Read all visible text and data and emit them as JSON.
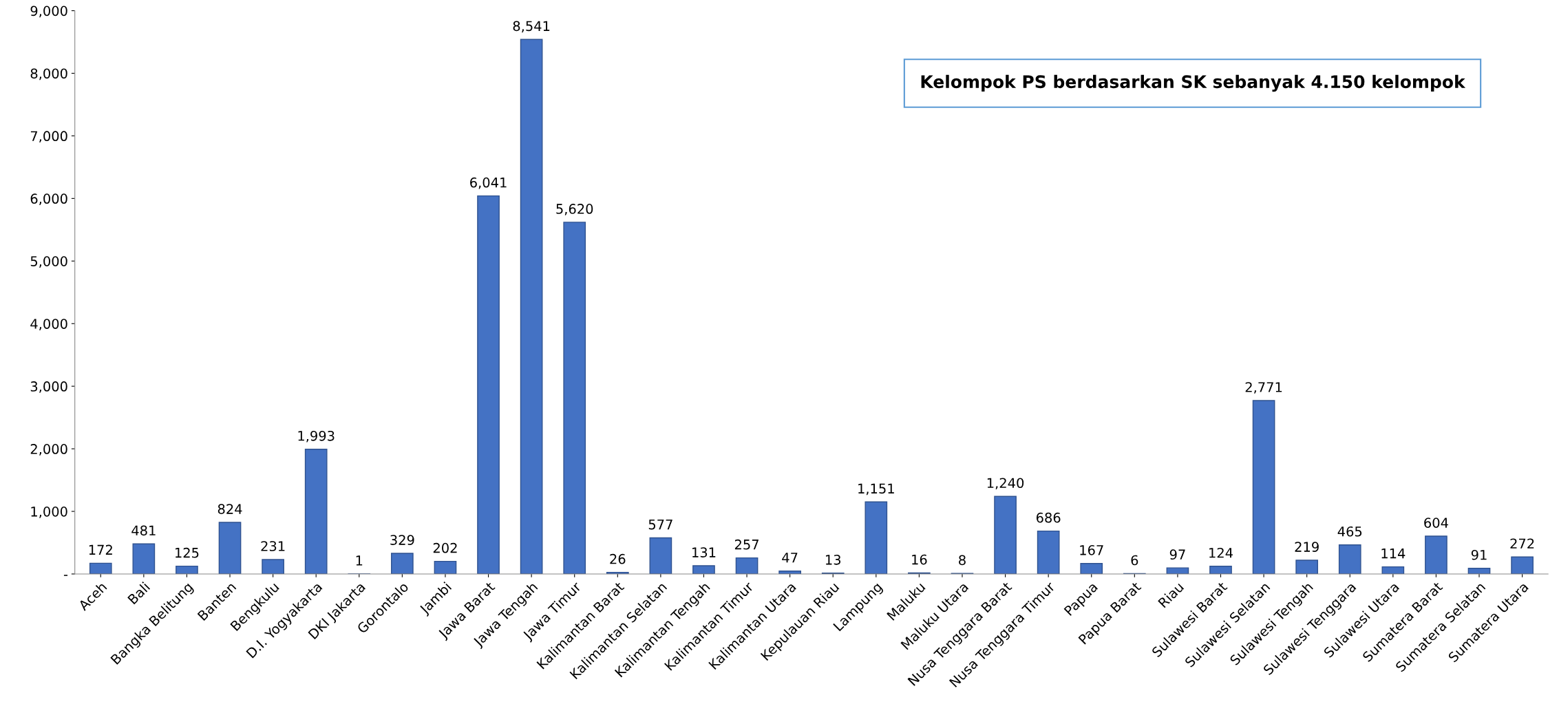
{
  "chart_data": {
    "type": "bar",
    "categories": [
      "Aceh",
      "Bali",
      "Bangka Belitung",
      "Banten",
      "Bengkulu",
      "D.I. Yogyakarta",
      "DKI Jakarta",
      "Gorontalo",
      "Jambi",
      "Jawa Barat",
      "Jawa Tengah",
      "Jawa Timur",
      "Kalimantan Barat",
      "Kalimantan Selatan",
      "Kalimantan Tengah",
      "Kalimantan Timur",
      "Kalimantan Utara",
      "Kepulauan Riau",
      "Lampung",
      "Maluku",
      "Maluku Utara",
      "Nusa Tenggara Barat",
      "Nusa Tenggara Timur",
      "Papua",
      "Papua Barat",
      "Riau",
      "Sulawesi Barat",
      "Sulawesi Selatan",
      "Sulawesi Tengah",
      "Sulawesi Tenggara",
      "Sulawesi Utara",
      "Sumatera Barat",
      "Sumatera Selatan",
      "Sumatera Utara"
    ],
    "values": [
      172,
      481,
      125,
      824,
      231,
      1993,
      1,
      329,
      202,
      6041,
      8541,
      5620,
      26,
      577,
      131,
      257,
      47,
      13,
      1151,
      16,
      8,
      1240,
      686,
      167,
      6,
      97,
      124,
      2771,
      219,
      465,
      114,
      604,
      91,
      272
    ],
    "value_labels": [
      "172",
      "481",
      "125",
      "824",
      "231",
      "1,993",
      "1",
      "329",
      "202",
      "6,041",
      "8,541",
      "5,620",
      "26",
      "577",
      "131",
      "257",
      "47",
      "13",
      "1,151",
      "16",
      "8",
      "1,240",
      "686",
      "167",
      "6",
      "97",
      "124",
      "2,771",
      "219",
      "465",
      "114",
      "604",
      "91",
      "272"
    ],
    "color": "#4472c4",
    "ylim": [
      0,
      9000
    ],
    "yticks": [
      {
        "value": 0,
        "label": "-"
      },
      {
        "value": 1000,
        "label": "1,000"
      },
      {
        "value": 2000,
        "label": "2,000"
      },
      {
        "value": 3000,
        "label": "3,000"
      },
      {
        "value": 4000,
        "label": "4,000"
      },
      {
        "value": 5000,
        "label": "5,000"
      },
      {
        "value": 6000,
        "label": "6,000"
      },
      {
        "value": 7000,
        "label": "7,000"
      },
      {
        "value": 8000,
        "label": "8,000"
      },
      {
        "value": 9000,
        "label": "9,000"
      }
    ],
    "grid": false,
    "annotations": [
      "Kelompok PS berdasarkan SK sebanyak 4.150 kelompok"
    ]
  }
}
